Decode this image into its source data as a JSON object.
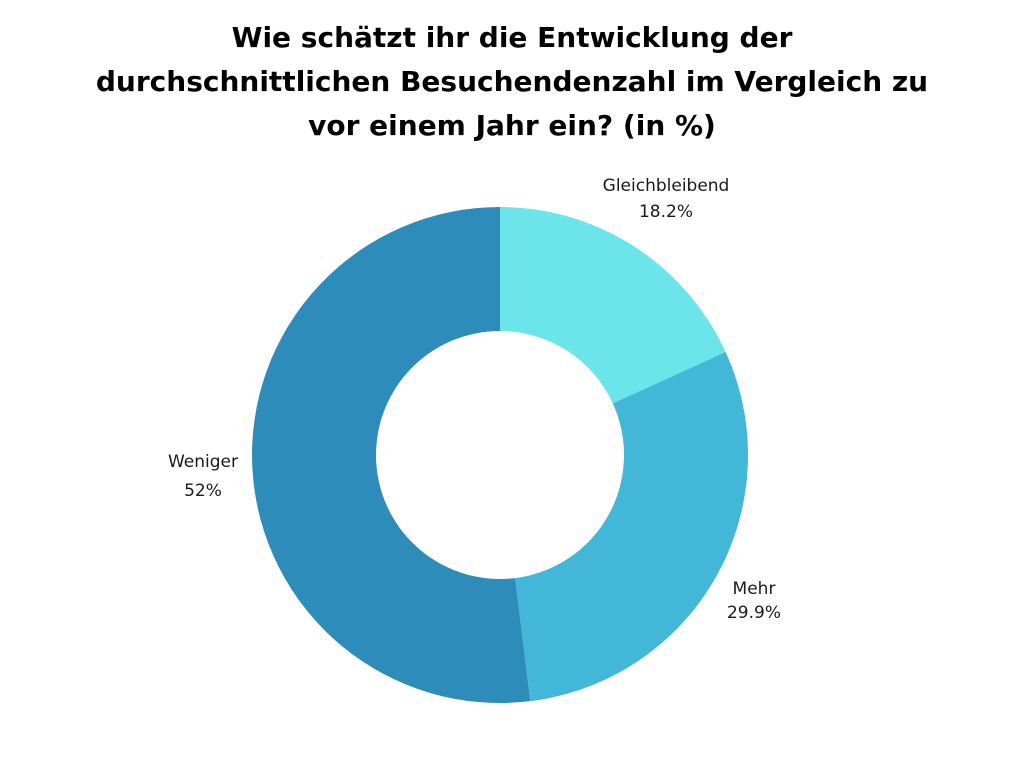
{
  "chart_data": {
    "type": "donut",
    "title_lines": [
      "Wie schätzt ihr die Entwicklung der",
      "durchschnittlichen Besuchendenzahl im Vergleich zu",
      "vor einem Jahr ein? (in %)"
    ],
    "slices": [
      {
        "name": "Gleichbleibend",
        "value": 18.2,
        "value_label": "18.2%",
        "color": "#6be4ea"
      },
      {
        "name": "Mehr",
        "value": 29.9,
        "value_label": "29.9%",
        "color": "#42b7d8"
      },
      {
        "name": "Weniger",
        "value": 52,
        "value_label": "52%",
        "color": "#2e8cbb"
      }
    ],
    "start_angle": "12 o'clock",
    "direction": "clockwise",
    "legend": "none",
    "data_labels": "outside, name above value"
  }
}
